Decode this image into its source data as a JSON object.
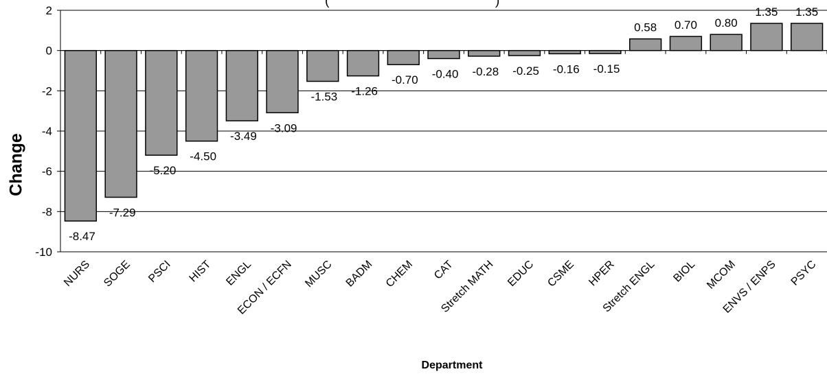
{
  "chart_data": {
    "type": "bar",
    "title": "(",
    "title_right": ")",
    "xlabel": "Department",
    "ylabel": "Change",
    "ylim": [
      -10,
      2
    ],
    "yticks": [
      2,
      0,
      -2,
      -4,
      -6,
      -8,
      -10
    ],
    "grid": true,
    "bar_color": "#999999",
    "categories": [
      "NURS",
      "SOGE",
      "PSCI",
      "HIST",
      "ENGL",
      "ECON / ECFN",
      "MUSC",
      "BADM",
      "CHEM",
      "CAT",
      "Stretch MATH",
      "EDUC",
      "CSME",
      "HPER",
      "Stretch ENGL",
      "BIOL",
      "MCOM",
      "ENVS / ENPS",
      "PSYC"
    ],
    "values": [
      -8.47,
      -7.29,
      -5.2,
      -4.5,
      -3.49,
      -3.09,
      -1.53,
      -1.26,
      -0.7,
      -0.4,
      -0.28,
      -0.25,
      -0.16,
      -0.15,
      0.58,
      0.7,
      0.8,
      1.35,
      1.35
    ],
    "data_labels": [
      "-8.47",
      "-7.29",
      "-5.20",
      "-4.50",
      "-3.49",
      "-3.09",
      "-1.53",
      "-1.26",
      "-0.70",
      "-0.40",
      "-0.28",
      "-0.25",
      "-0.16",
      "-0.15",
      "0.58",
      "0.70",
      "0.80",
      "1.35",
      "1.35"
    ]
  }
}
